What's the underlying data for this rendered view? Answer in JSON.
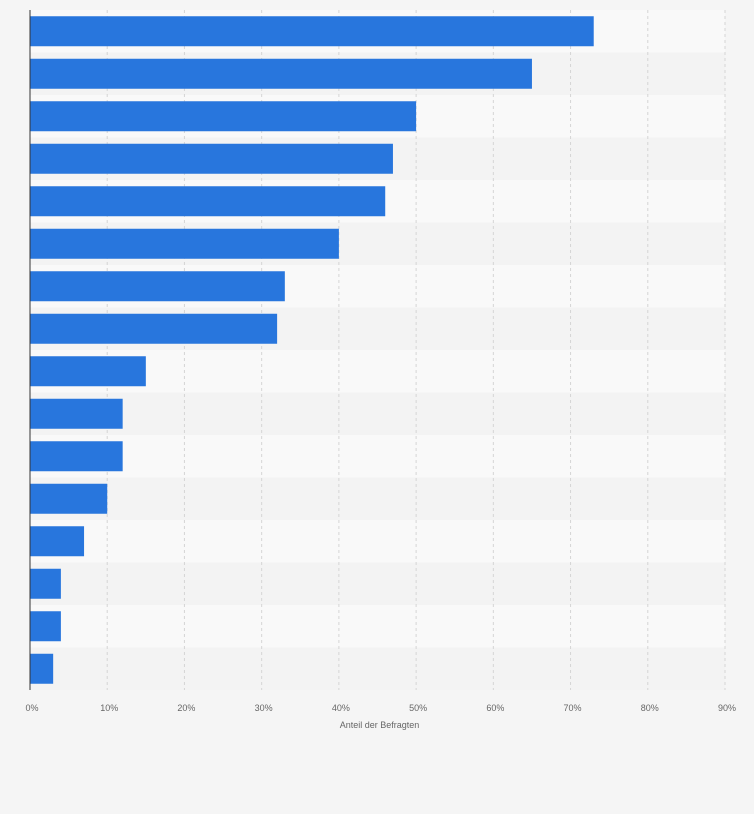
{
  "chart_data": {
    "type": "bar",
    "orientation": "horizontal",
    "title": "",
    "xlabel": "Anteil der Befragten",
    "ylabel": "",
    "categories": [
      "",
      "",
      "",
      "",
      "",
      "",
      "",
      "",
      "",
      "",
      "",
      "",
      "",
      "",
      "",
      ""
    ],
    "values": [
      73,
      65,
      50,
      47,
      46,
      40,
      33,
      32,
      15,
      12,
      12,
      10,
      7,
      4,
      4,
      3
    ],
    "xlim": [
      0,
      90
    ],
    "ticks": [
      0,
      10,
      20,
      30,
      40,
      50,
      60,
      70,
      80,
      90
    ],
    "tick_labels": [
      "0%",
      "10%",
      "20%",
      "30%",
      "40%",
      "50%",
      "60%",
      "70%",
      "80%",
      "90%"
    ],
    "grid": true,
    "colors": {
      "bar": "#2876dd",
      "band_light": "#f9f9f9",
      "band_dark": "#f3f3f3",
      "grid": "#d5d5d5",
      "axis": "#333333",
      "tick_text": "#666666"
    }
  }
}
